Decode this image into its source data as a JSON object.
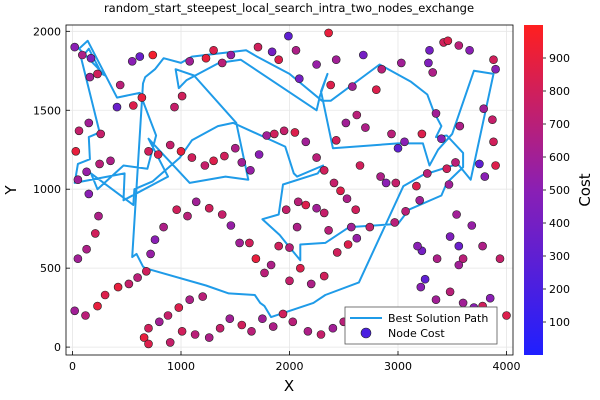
{
  "chart_data": {
    "type": "scatter",
    "title": "random_start_steepest_local_search_intra_two_nodes_exchange",
    "xlabel": "X",
    "ylabel": "Y",
    "colorbar_label": "Cost",
    "xlim": [
      -60,
      4060
    ],
    "ylim": [
      -50,
      2040
    ],
    "clim": [
      0,
      1000
    ],
    "xticks": [
      0,
      1000,
      2000,
      3000,
      4000
    ],
    "yticks": [
      0,
      500,
      1000,
      1500,
      2000
    ],
    "colorbar_ticks": [
      100,
      200,
      300,
      400,
      500,
      600,
      700,
      800,
      900
    ],
    "grid": true,
    "legend_position": "bottom-right",
    "series": [
      {
        "name": "Best Solution Path",
        "kind": "line",
        "color": "#1f9be8",
        "x": [
          550,
          590,
          650,
          670,
          1230,
          1440,
          1680,
          1730,
          1770,
          1830,
          2220,
          2330,
          2640,
          3050,
          3230,
          3550,
          3670,
          3880,
          3700,
          3500,
          3370,
          3290,
          3230,
          3000,
          2400,
          2290,
          2350,
          2280,
          2250,
          1550,
          1350,
          1050,
          980,
          950,
          1120,
          1510,
          1620,
          1410,
          1080,
          700,
          880,
          470,
          480,
          20,
          50,
          160,
          150,
          250,
          80,
          150,
          270,
          300,
          60,
          140,
          410,
          620,
          770,
          690,
          470,
          230,
          170,
          560,
          570,
          740,
          990,
          1100,
          1340,
          1480,
          1960,
          2040,
          2070,
          2310,
          2260,
          1940,
          1900,
          1750,
          1910,
          1980,
          2100,
          2100,
          2330,
          2550,
          3000,
          3100,
          3400,
          3450,
          3600,
          3600,
          3450,
          3350,
          3400,
          3330,
          3270,
          3120,
          2830,
          2380,
          2300,
          2000,
          1700,
          1600,
          1100,
          1000,
          840,
          760,
          670,
          650
        ],
        "y": [
          570,
          590,
          510,
          500,
          390,
          340,
          330,
          280,
          260,
          190,
          280,
          330,
          410,
          1020,
          1090,
          1160,
          1060,
          1730,
          1750,
          1350,
          1250,
          1150,
          1290,
          1290,
          1260,
          1620,
          1730,
          1590,
          1500,
          1820,
          1800,
          1690,
          1640,
          1760,
          1720,
          1420,
          1060,
          1080,
          1040,
          1320,
          1080,
          930,
          1100,
          1040,
          1160,
          1190,
          1330,
          1360,
          1830,
          1890,
          1730,
          1720,
          1890,
          1940,
          1580,
          1610,
          1340,
          1130,
          1150,
          1000,
          1100,
          900,
          1000,
          1050,
          1200,
          1310,
          1400,
          1420,
          1270,
          1100,
          1080,
          1150,
          1100,
          1030,
          840,
          810,
          710,
          650,
          550,
          650,
          660,
          760,
          780,
          870,
          960,
          1040,
          1140,
          1230,
          1340,
          1330,
          1400,
          1490,
          1600,
          1680,
          1790,
          1560,
          1560,
          1730,
          1840,
          1880,
          1840,
          1800,
          1830,
          1760,
          1710,
          1670
        ]
      },
      {
        "name": "Node Cost",
        "kind": "scatter",
        "points": [
          [
            20,
            1900,
            500
          ],
          [
            90,
            1850,
            650
          ],
          [
            170,
            1830,
            450
          ],
          [
            230,
            1730,
            800
          ],
          [
            160,
            1710,
            600
          ],
          [
            410,
            1520,
            350
          ],
          [
            440,
            1660,
            700
          ],
          [
            560,
            1530,
            850
          ],
          [
            640,
            1580,
            900
          ],
          [
            550,
            1810,
            500
          ],
          [
            620,
            1840,
            350
          ],
          [
            740,
            1850,
            950
          ],
          [
            940,
            1520,
            750
          ],
          [
            1010,
            1590,
            800
          ],
          [
            1080,
            1810,
            600
          ],
          [
            1230,
            1830,
            900
          ],
          [
            1300,
            1880,
            850
          ],
          [
            1380,
            1800,
            700
          ],
          [
            1460,
            1850,
            550
          ],
          [
            1710,
            1900,
            800
          ],
          [
            1840,
            1870,
            400
          ],
          [
            1900,
            1820,
            850
          ],
          [
            1990,
            1970,
            300
          ],
          [
            2060,
            1880,
            650
          ],
          [
            2090,
            1700,
            400
          ],
          [
            2360,
            1990,
            900
          ],
          [
            2380,
            1660,
            850
          ],
          [
            2250,
            1790,
            550
          ],
          [
            2430,
            1820,
            600
          ],
          [
            2680,
            1850,
            400
          ],
          [
            2850,
            1760,
            700
          ],
          [
            2800,
            1630,
            850
          ],
          [
            3030,
            1800,
            600
          ],
          [
            3280,
            1800,
            450
          ],
          [
            3290,
            1880,
            400
          ],
          [
            3320,
            1740,
            650
          ],
          [
            3420,
            1930,
            800
          ],
          [
            3460,
            1940,
            850
          ],
          [
            3560,
            1910,
            700
          ],
          [
            3660,
            1880,
            500
          ],
          [
            3880,
            1820,
            800
          ],
          [
            3900,
            1760,
            500
          ],
          [
            3790,
            1510,
            600
          ],
          [
            3870,
            1440,
            750
          ],
          [
            3880,
            1300,
            800
          ],
          [
            3900,
            1150,
            850
          ],
          [
            3800,
            1080,
            500
          ],
          [
            3750,
            1160,
            300
          ],
          [
            3570,
            1400,
            650
          ],
          [
            3530,
            1170,
            700
          ],
          [
            3450,
            1130,
            800
          ],
          [
            3350,
            1480,
            600
          ],
          [
            3220,
            1350,
            850
          ],
          [
            3060,
            1300,
            500
          ],
          [
            2940,
            1350,
            700
          ],
          [
            3000,
            1260,
            300
          ],
          [
            2700,
            1390,
            650
          ],
          [
            2620,
            1470,
            700
          ],
          [
            2520,
            1420,
            600
          ],
          [
            2430,
            1310,
            800
          ],
          [
            2580,
            1650,
            600
          ],
          [
            2650,
            1150,
            800
          ],
          [
            2840,
            1080,
            650
          ],
          [
            2890,
            1040,
            500
          ],
          [
            2980,
            1040,
            750
          ],
          [
            3170,
            1020,
            850
          ],
          [
            3270,
            1100,
            700
          ],
          [
            3400,
            1320,
            500
          ],
          [
            3470,
            1030,
            600
          ],
          [
            3480,
            700,
            450
          ],
          [
            3560,
            640,
            350
          ],
          [
            3600,
            560,
            700
          ],
          [
            3560,
            520,
            600
          ],
          [
            3360,
            560,
            650
          ],
          [
            3220,
            610,
            400
          ],
          [
            3180,
            640,
            500
          ],
          [
            3210,
            380,
            500
          ],
          [
            3250,
            430,
            300
          ],
          [
            3350,
            300,
            600
          ],
          [
            3480,
            350,
            700
          ],
          [
            3600,
            280,
            600
          ],
          [
            3700,
            250,
            500
          ],
          [
            3780,
            260,
            800
          ],
          [
            3850,
            310,
            500
          ],
          [
            4000,
            200,
            850
          ],
          [
            3940,
            560,
            750
          ],
          [
            3780,
            640,
            650
          ],
          [
            3680,
            770,
            550
          ],
          [
            3540,
            840,
            600
          ],
          [
            3200,
            930,
            600
          ],
          [
            3070,
            860,
            700
          ],
          [
            2970,
            790,
            700
          ],
          [
            2740,
            760,
            750
          ],
          [
            2620,
            690,
            550
          ],
          [
            2570,
            760,
            600
          ],
          [
            2540,
            650,
            850
          ],
          [
            2440,
            600,
            800
          ],
          [
            2360,
            740,
            700
          ],
          [
            2320,
            850,
            750
          ],
          [
            2250,
            880,
            600
          ],
          [
            2150,
            900,
            850
          ],
          [
            2080,
            920,
            700
          ],
          [
            1970,
            870,
            750
          ],
          [
            2070,
            760,
            650
          ],
          [
            2000,
            630,
            700
          ],
          [
            1900,
            640,
            800
          ],
          [
            1830,
            520,
            650
          ],
          [
            1770,
            470,
            700
          ],
          [
            1690,
            560,
            900
          ],
          [
            1630,
            660,
            800
          ],
          [
            1540,
            660,
            600
          ],
          [
            1460,
            770,
            550
          ],
          [
            1380,
            840,
            750
          ],
          [
            1260,
            880,
            800
          ],
          [
            1140,
            920,
            600
          ],
          [
            1060,
            830,
            700
          ],
          [
            960,
            870,
            800
          ],
          [
            840,
            760,
            650
          ],
          [
            760,
            680,
            500
          ],
          [
            720,
            590,
            550
          ],
          [
            680,
            480,
            800
          ],
          [
            600,
            440,
            700
          ],
          [
            520,
            400,
            750
          ],
          [
            420,
            380,
            900
          ],
          [
            300,
            330,
            850
          ],
          [
            230,
            260,
            900
          ],
          [
            120,
            200,
            700
          ],
          [
            20,
            230,
            600
          ],
          [
            50,
            560,
            600
          ],
          [
            130,
            620,
            650
          ],
          [
            210,
            720,
            800
          ],
          [
            240,
            830,
            650
          ],
          [
            150,
            970,
            500
          ],
          [
            50,
            1060,
            600
          ],
          [
            130,
            1110,
            550
          ],
          [
            250,
            1160,
            700
          ],
          [
            350,
            1180,
            650
          ],
          [
            30,
            1240,
            900
          ],
          [
            60,
            1370,
            750
          ],
          [
            150,
            1420,
            600
          ],
          [
            260,
            1350,
            750
          ],
          [
            700,
            1240,
            800
          ],
          [
            790,
            1220,
            850
          ],
          [
            900,
            1280,
            750
          ],
          [
            1000,
            1240,
            900
          ],
          [
            1100,
            1200,
            800
          ],
          [
            1220,
            1150,
            750
          ],
          [
            1300,
            1180,
            850
          ],
          [
            1400,
            1210,
            800
          ],
          [
            1500,
            1260,
            650
          ],
          [
            1560,
            1170,
            600
          ],
          [
            1640,
            1120,
            550
          ],
          [
            1720,
            1220,
            500
          ],
          [
            1790,
            1340,
            600
          ],
          [
            1860,
            1350,
            800
          ],
          [
            1950,
            1370,
            750
          ],
          [
            2050,
            1360,
            850
          ],
          [
            2150,
            1300,
            600
          ],
          [
            2250,
            1200,
            700
          ],
          [
            2320,
            1120,
            800
          ],
          [
            2410,
            1040,
            750
          ],
          [
            2470,
            990,
            850
          ],
          [
            2530,
            940,
            650
          ],
          [
            2610,
            870,
            800
          ],
          [
            1200,
            320,
            700
          ],
          [
            1080,
            300,
            650
          ],
          [
            980,
            250,
            850
          ],
          [
            880,
            200,
            750
          ],
          [
            800,
            160,
            600
          ],
          [
            700,
            120,
            800
          ],
          [
            660,
            60,
            900
          ],
          [
            700,
            20,
            850
          ],
          [
            900,
            30,
            750
          ],
          [
            1010,
            100,
            800
          ],
          [
            1130,
            80,
            700
          ],
          [
            1260,
            60,
            650
          ],
          [
            1360,
            120,
            750
          ],
          [
            1450,
            180,
            600
          ],
          [
            1560,
            140,
            800
          ],
          [
            1650,
            100,
            700
          ],
          [
            1750,
            180,
            600
          ],
          [
            1850,
            130,
            650
          ],
          [
            1940,
            210,
            800
          ],
          [
            2030,
            160,
            700
          ],
          [
            2170,
            100,
            650
          ],
          [
            2290,
            80,
            750
          ],
          [
            2400,
            120,
            600
          ],
          [
            2500,
            160,
            700
          ],
          [
            2610,
            200,
            650
          ],
          [
            2700,
            140,
            800
          ],
          [
            2800,
            100,
            750
          ],
          [
            2900,
            60,
            700
          ],
          [
            3000,
            120,
            600
          ],
          [
            3100,
            80,
            700
          ],
          [
            2200,
            400,
            650
          ],
          [
            2320,
            450,
            800
          ],
          [
            2100,
            500,
            850
          ],
          [
            2000,
            420,
            750
          ]
        ]
      }
    ]
  },
  "legend": {
    "path_label": "Best Solution Path",
    "node_label": "Node Cost"
  },
  "colors": {
    "path": "#1f9be8",
    "cost_low": "#1f1fff",
    "cost_high": "#ff1f1f"
  }
}
